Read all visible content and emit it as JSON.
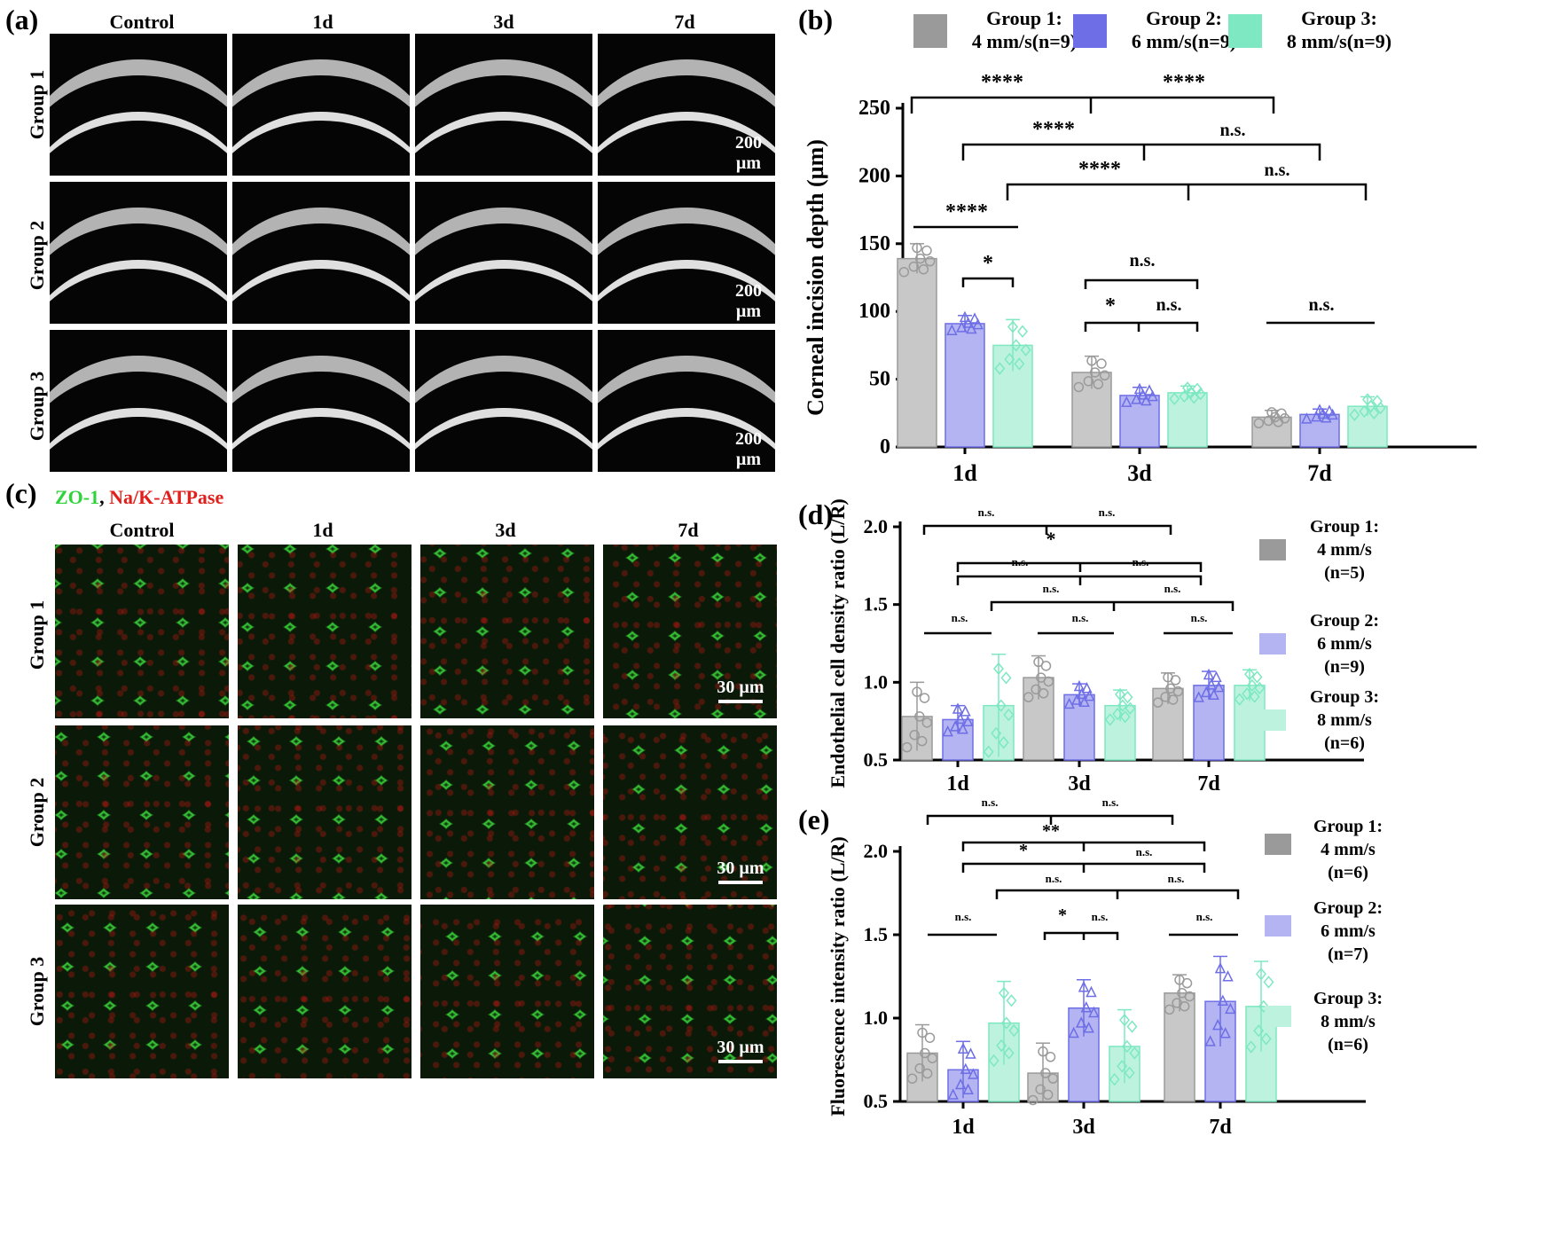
{
  "panels": {
    "a": "(a)",
    "b": "(b)",
    "c": "(c)",
    "d": "(d)",
    "e": "(e)"
  },
  "image_grid": {
    "columns": [
      "Control",
      "1d",
      "3d",
      "7d"
    ],
    "rows": [
      "Group 1",
      "Group 2",
      "Group 3"
    ],
    "oct_scale": "200 µm",
    "conf_scale": "30 µm"
  },
  "stain": {
    "zo1": "ZO-1",
    "sep": ",",
    "atpase": " Na/K-ATPase"
  },
  "colors": {
    "g1": "#9a9a9a",
    "g2": "#6e6ee6",
    "g3": "#7de8c2",
    "g1_light": "#c8c8c8",
    "g2_light": "#b4b4f2",
    "g3_light": "#bdf3de",
    "green": "#2ed33a",
    "red": "#e0201c"
  },
  "chart_data": [
    {
      "id": "b",
      "type": "bar",
      "ylabel": "Corneal incision depth (µm)",
      "categories": [
        "1d",
        "3d",
        "7d"
      ],
      "ylim": [
        0,
        250
      ],
      "yticks": [
        0,
        50,
        100,
        150,
        200,
        250
      ],
      "legend": [
        "Group 1:",
        "4 mm/s(n=9)",
        "Group 2:",
        "6 mm/s(n=9)",
        "Group 3:",
        "8 mm/s(n=9)"
      ],
      "series": [
        {
          "name": "Group 1: 4 mm/s(n=9)",
          "values": [
            139,
            55,
            22
          ],
          "sd": [
            11,
            12,
            5
          ]
        },
        {
          "name": "Group 2: 6 mm/s(n=9)",
          "values": [
            91,
            38,
            24
          ],
          "sd": [
            6,
            6,
            4
          ]
        },
        {
          "name": "Group 3: 8 mm/s(n=9)",
          "values": [
            75,
            40,
            30
          ],
          "sd": [
            19,
            5,
            7
          ]
        }
      ],
      "annotations": [
        "****",
        "****",
        "****",
        "n.s.",
        "****",
        "n.s.",
        "****",
        "*",
        "n.s.",
        "*",
        "n.s.",
        "n.s."
      ]
    },
    {
      "id": "d",
      "type": "bar",
      "ylabel": "Endothelial cell density ratio (L/R)",
      "categories": [
        "1d",
        "3d",
        "7d"
      ],
      "ylim": [
        0.5,
        2.0
      ],
      "yticks": [
        0.5,
        1.0,
        1.5,
        2.0
      ],
      "legend": [
        [
          "Group 1:",
          "4 mm/s",
          "(n=5)"
        ],
        [
          "Group 2:",
          "6 mm/s",
          "(n=9)"
        ],
        [
          "Group 3:",
          "8 mm/s",
          "(n=6)"
        ]
      ],
      "series": [
        {
          "name": "Group 1",
          "values": [
            0.78,
            1.03,
            0.96
          ],
          "sd": [
            0.22,
            0.14,
            0.1
          ]
        },
        {
          "name": "Group 2",
          "values": [
            0.76,
            0.92,
            0.98
          ],
          "sd": [
            0.09,
            0.07,
            0.09
          ]
        },
        {
          "name": "Group 3",
          "values": [
            0.85,
            0.85,
            0.98
          ],
          "sd": [
            0.33,
            0.1,
            0.1
          ]
        }
      ],
      "annotations": [
        "n.s.",
        "n.s.",
        "*",
        "n.s.",
        "n.s.",
        "n.s.",
        "n.s.",
        "n.s.",
        "n.s.",
        "n.s."
      ]
    },
    {
      "id": "e",
      "type": "bar",
      "ylabel": "Fluorescence intensity ratio (L/R)",
      "categories": [
        "1d",
        "3d",
        "7d"
      ],
      "ylim": [
        0.5,
        2.0
      ],
      "yticks": [
        0.5,
        1.0,
        1.5,
        2.0
      ],
      "legend": [
        [
          "Group 1:",
          "4 mm/s",
          "(n=6)"
        ],
        [
          "Group 2:",
          "6 mm/s",
          "(n=7)"
        ],
        [
          "Group 3:",
          "8 mm/s",
          "(n=6)"
        ]
      ],
      "series": [
        {
          "name": "Group 1",
          "values": [
            0.79,
            0.67,
            1.15
          ],
          "sd": [
            0.17,
            0.18,
            0.11
          ]
        },
        {
          "name": "Group 2",
          "values": [
            0.69,
            1.06,
            1.1
          ],
          "sd": [
            0.17,
            0.17,
            0.27
          ]
        },
        {
          "name": "Group 3",
          "values": [
            0.97,
            0.83,
            1.07
          ],
          "sd": [
            0.25,
            0.22,
            0.27
          ]
        }
      ],
      "annotations": [
        "n.s.",
        "n.s.",
        "**",
        "*",
        "n.s.",
        "n.s.",
        "n.s.",
        "n.s.",
        "*",
        "n.s.",
        "n.s."
      ]
    }
  ]
}
